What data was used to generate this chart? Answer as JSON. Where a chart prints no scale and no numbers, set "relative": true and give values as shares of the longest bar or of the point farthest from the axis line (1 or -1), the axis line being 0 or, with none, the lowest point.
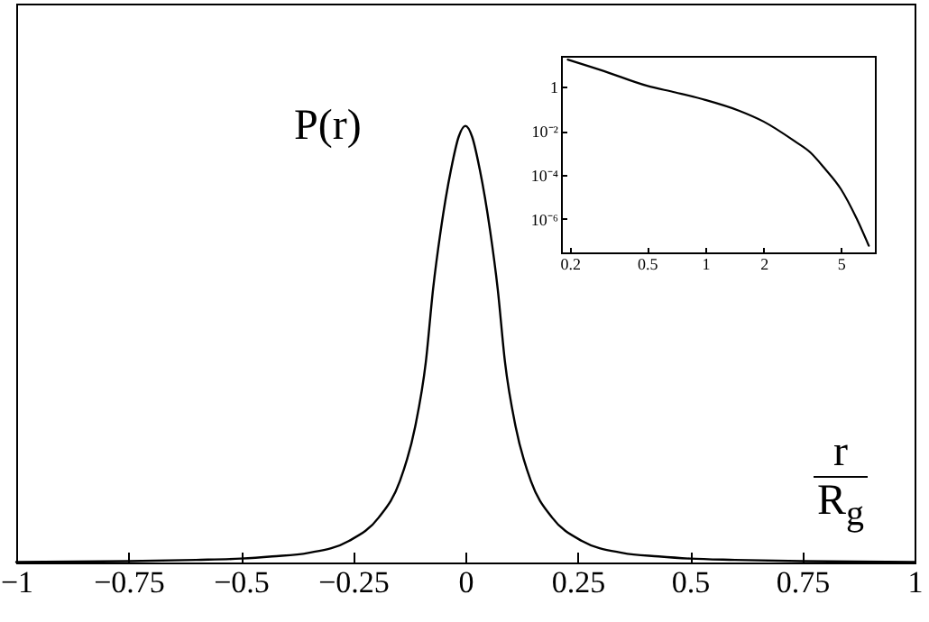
{
  "chart_data": [
    {
      "type": "line",
      "relative": true,
      "ylabel": "P(r)",
      "xlabel": "r\nR$_{g}$",
      "x": [
        -1,
        -0.75,
        -0.6,
        -0.5,
        -0.43,
        -0.35,
        -0.26,
        -0.193,
        -0.146,
        -0.112,
        -0.088,
        -0.072,
        -0.055,
        -0.032,
        -0.015,
        0,
        0.015,
        0.032,
        0.055,
        0.072,
        0.088,
        0.112,
        0.146,
        0.193,
        0.26,
        0.35,
        0.43,
        0.5,
        0.6,
        0.75,
        1
      ],
      "values": [
        0.001,
        0.003,
        0.006,
        0.009,
        0.014,
        0.022,
        0.049,
        0.103,
        0.186,
        0.31,
        0.46,
        0.626,
        0.76,
        0.9,
        0.975,
        1,
        0.975,
        0.9,
        0.76,
        0.626,
        0.46,
        0.31,
        0.186,
        0.103,
        0.049,
        0.022,
        0.014,
        0.009,
        0.006,
        0.003,
        0.001
      ],
      "xlim": [
        -1,
        1
      ],
      "xticks": [
        -1,
        -0.75,
        -0.5,
        -0.25,
        0,
        0.25,
        0.5,
        0.75,
        1
      ],
      "marker": "none",
      "line_style": "solid"
    },
    {
      "type": "line",
      "log": "xy",
      "x": [
        0.195,
        0.3,
        0.5,
        0.7,
        1,
        1.5,
        2,
        2.87,
        3.5,
        4.1,
        5,
        6.05,
        6.98
      ],
      "values": [
        17,
        5.1,
        1.1,
        0.55,
        0.25,
        0.08,
        0.026,
        0.0035,
        0.001,
        0.00021,
        2.3e-05,
        1e-06,
        6e-08
      ],
      "xlim": [
        0.18,
        7.5
      ],
      "ylim": [
        3e-08,
        25
      ],
      "xticks": [
        0.2,
        0.5,
        1,
        2,
        5
      ],
      "yticks": [
        1,
        {
          "value": 0.01,
          "label": "10⁻²"
        },
        {
          "value": 0.0001,
          "label": "10⁻⁴"
        },
        {
          "value": 1e-06,
          "label": "10⁻⁶"
        }
      ],
      "marker": "none",
      "line_style": "solid"
    }
  ]
}
